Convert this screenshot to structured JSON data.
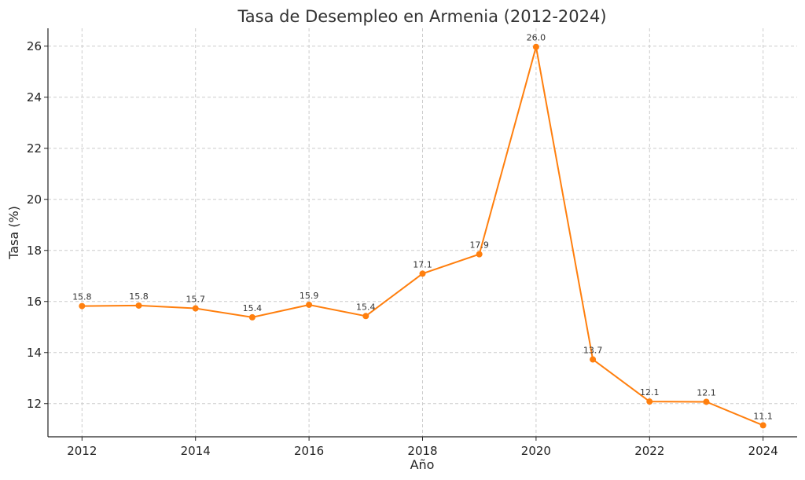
{
  "chart_data": {
    "type": "line",
    "title": "Tasa de Desempleo en Armenia (2012-2024)",
    "xlabel": "Año",
    "ylabel": "Tasa (%)",
    "x": [
      2012,
      2013,
      2014,
      2015,
      2016,
      2017,
      2018,
      2019,
      2020,
      2021,
      2022,
      2023,
      2024
    ],
    "values": [
      15.82,
      15.84,
      15.73,
      15.38,
      15.87,
      15.43,
      17.09,
      17.85,
      25.97,
      13.73,
      12.08,
      12.07,
      11.15
    ],
    "data_labels": [
      "15.8",
      "15.8",
      "15.7",
      "15.4",
      "15.9",
      "15.4",
      "17.1",
      "17.9",
      "26.0",
      "13.7",
      "12.1",
      "12.1",
      "11.1"
    ],
    "xlim": [
      2011.4,
      2024.6
    ],
    "ylim": [
      10.7,
      26.7
    ],
    "x_ticks": [
      2012,
      2014,
      2016,
      2018,
      2020,
      2022,
      2024
    ],
    "y_ticks": [
      12,
      14,
      16,
      18,
      20,
      22,
      24,
      26
    ],
    "grid": true,
    "color": "#ff7f0e"
  }
}
